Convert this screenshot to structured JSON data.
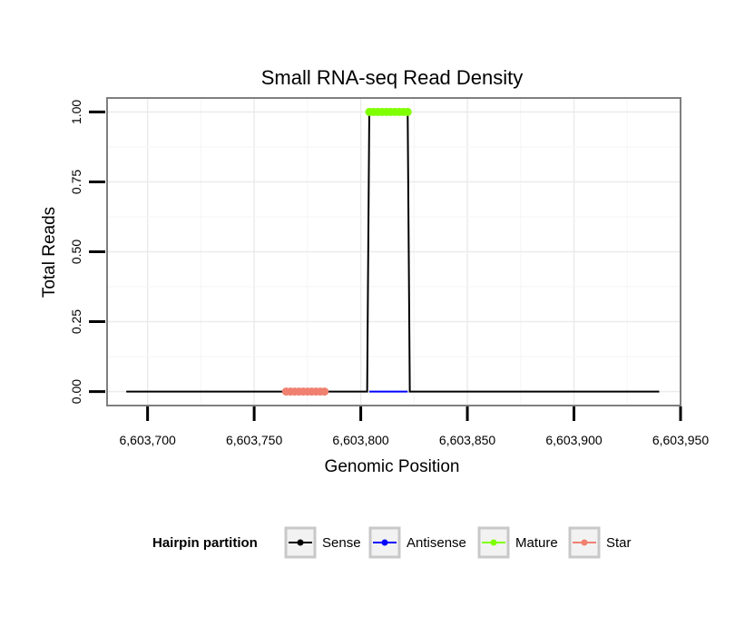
{
  "chart_data": {
    "type": "line",
    "title": "Small RNA-seq Read Density",
    "xlabel": "Genomic Position",
    "ylabel": "Total Reads",
    "xlim": [
      6603681,
      6603950
    ],
    "ylim": [
      -0.05,
      1.05
    ],
    "x_ticks": [
      6603700,
      6603750,
      6603800,
      6603850,
      6603900,
      6603950
    ],
    "x_tick_labels": [
      "6,603,700",
      "6,603,750",
      "6,603,800",
      "6,603,850",
      "6,603,900",
      "6,603,950"
    ],
    "y_ticks": [
      0,
      0.25,
      0.5,
      0.75,
      1.0
    ],
    "y_tick_labels": [
      "0.00",
      "0.25",
      "0.50",
      "0.75",
      "1.00"
    ],
    "grid": true,
    "legend_position": "bottom",
    "legend_title": "Hairpin partition",
    "series": [
      {
        "name": "Sense",
        "color": "#000000",
        "marker": false,
        "x": [
          6603690,
          6603803,
          6603804,
          6603822,
          6603823,
          6603940
        ],
        "y": [
          0,
          0,
          1,
          1,
          0,
          0
        ]
      },
      {
        "name": "Antisense",
        "color": "#0000ff",
        "marker": false,
        "x": [
          6603804,
          6603822
        ],
        "y": [
          0,
          0
        ]
      },
      {
        "name": "Mature",
        "color": "#7fff00",
        "marker": true,
        "x": [
          6603804,
          6603806,
          6603808,
          6603810,
          6603812,
          6603814,
          6603816,
          6603818,
          6603820,
          6603822
        ],
        "y": [
          1,
          1,
          1,
          1,
          1,
          1,
          1,
          1,
          1,
          1
        ]
      },
      {
        "name": "Star",
        "color": "#f08070",
        "marker": true,
        "x": [
          6603765,
          6603767,
          6603769,
          6603771,
          6603773,
          6603775,
          6603777,
          6603779,
          6603781,
          6603783
        ],
        "y": [
          0,
          0,
          0,
          0,
          0,
          0,
          0,
          0,
          0,
          0
        ]
      }
    ]
  }
}
